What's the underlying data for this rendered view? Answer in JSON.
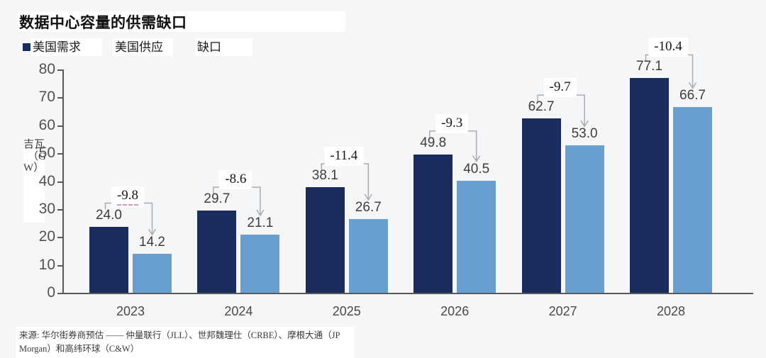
{
  "header": {
    "title": "数据中心容量的供需缺口"
  },
  "legend": {
    "items": [
      {
        "label": "美国需求",
        "swatch": "#1a2c5e"
      },
      {
        "label": "美国供应",
        "swatch": null
      },
      {
        "label": "缺口",
        "swatch": null
      }
    ]
  },
  "axis": {
    "y_unit_lines": [
      "吉瓦",
      "（G",
      "W）"
    ]
  },
  "footer": {
    "source": "来源: 华尔街券商预估 —— 仲量联行（JLL）、世邦魏理仕（CRBE）、摩根大通（JP Morgan）和高纬环球（C&W）"
  },
  "chart_data": {
    "type": "bar",
    "title": "数据中心容量的供需缺口",
    "categories": [
      "2023",
      "2024",
      "2025",
      "2026",
      "2027",
      "2028"
    ],
    "series": [
      {
        "name": "美国需求",
        "color": "#1a2c5e",
        "values": [
          24.0,
          29.7,
          38.1,
          49.8,
          62.7,
          77.1
        ]
      },
      {
        "name": "美国供应",
        "color": "#689fce",
        "values": [
          14.2,
          21.1,
          26.7,
          40.5,
          53.0,
          66.7
        ]
      }
    ],
    "gap_series": {
      "name": "缺口",
      "values": [
        -9.8,
        -8.6,
        -11.4,
        -9.3,
        -9.7,
        -10.4
      ]
    },
    "value_labels": {
      "demand": [
        "24.0",
        "29.7",
        "38.1",
        "49.8",
        "62.7",
        "77.1"
      ],
      "supply": [
        "14.2",
        "21.1",
        "26.7",
        "40.5",
        "53.0",
        "66.7"
      ],
      "gap": [
        "-9.8",
        "-8.6",
        "-11.4",
        "-9.3",
        "-9.7",
        "-10.4"
      ]
    },
    "underlined_gap_index": 0,
    "xlabel": "",
    "ylabel": "吉瓦（GW）",
    "ylim": [
      0,
      80
    ],
    "ytick_step": 10,
    "yticks": [
      0,
      10,
      20,
      30,
      40,
      50,
      60,
      70,
      80
    ],
    "grid": false,
    "legend_position": "top-left",
    "annotation_arrow_color": "#a9acae"
  }
}
